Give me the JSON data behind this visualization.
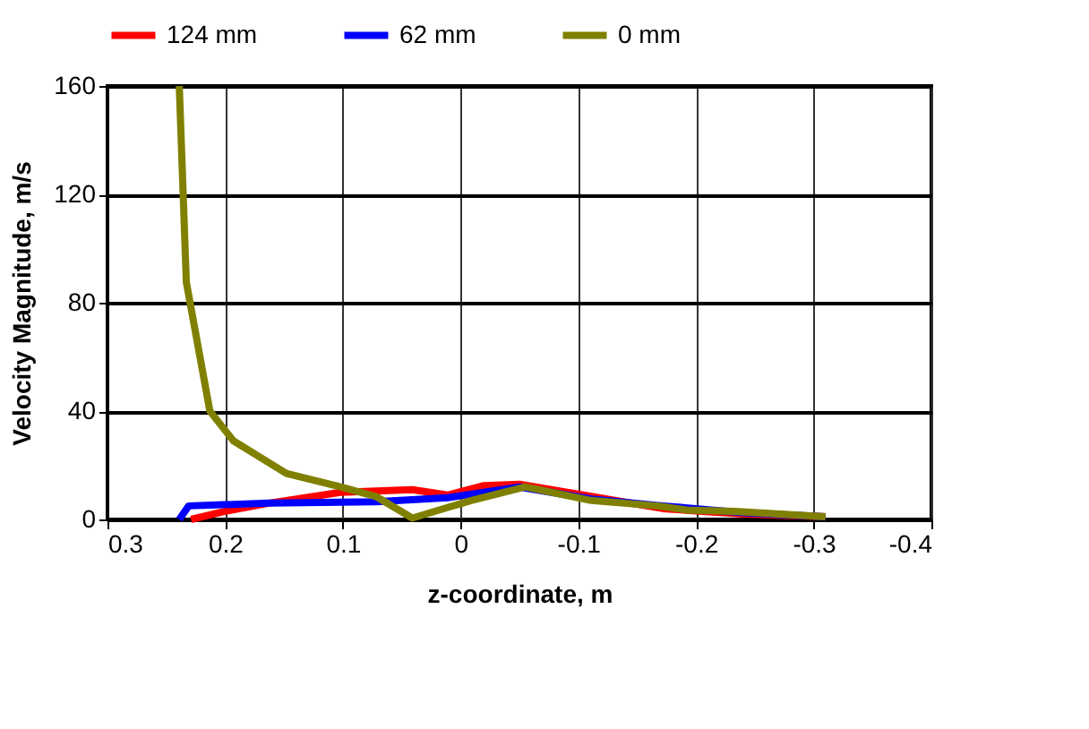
{
  "chart_data": {
    "type": "line",
    "xlabel": "z-coordinate, m",
    "ylabel": "Velocity Magnitude, m/s",
    "xlim": [
      0.3,
      -0.4
    ],
    "xticks": [
      0.3,
      0.2,
      0.1,
      0,
      -0.1,
      -0.2,
      -0.3,
      -0.4
    ],
    "ylim": [
      0,
      160
    ],
    "yticks": [
      0,
      40,
      80,
      120,
      160
    ],
    "grid": true,
    "legend": "top",
    "marker": "none",
    "line_style": "solid",
    "series": [
      {
        "name": "124 mm",
        "color": "#ff0000",
        "x": [
          0.229,
          0.2,
          0.163,
          0.102,
          0.041,
          0.011,
          -0.02,
          -0.05,
          -0.111,
          -0.172,
          -0.24,
          -0.31
        ],
        "values": [
          0,
          3,
          6,
          10,
          11,
          9,
          12.5,
          13,
          8.5,
          4,
          2,
          1
        ]
      },
      {
        "name": "62 mm",
        "color": "#0000ff",
        "x": [
          0.239,
          0.231,
          0.163,
          0.072,
          0.011,
          -0.05,
          -0.111,
          -0.172,
          -0.24,
          -0.31
        ],
        "values": [
          0,
          5,
          6,
          6.5,
          8,
          12,
          7.5,
          5,
          2.5,
          1
        ]
      },
      {
        "name": "0 mm",
        "color": "#808000",
        "x": [
          0.239,
          0.233,
          0.213,
          0.193,
          0.148,
          0.102,
          0.072,
          0.041,
          -0.009,
          -0.055,
          -0.111,
          -0.167,
          -0.192,
          -0.233,
          -0.31
        ],
        "values": [
          160,
          87.6,
          40,
          29,
          17,
          12,
          8.5,
          0.5,
          7,
          12,
          7,
          5,
          3.5,
          3,
          1
        ]
      }
    ]
  }
}
